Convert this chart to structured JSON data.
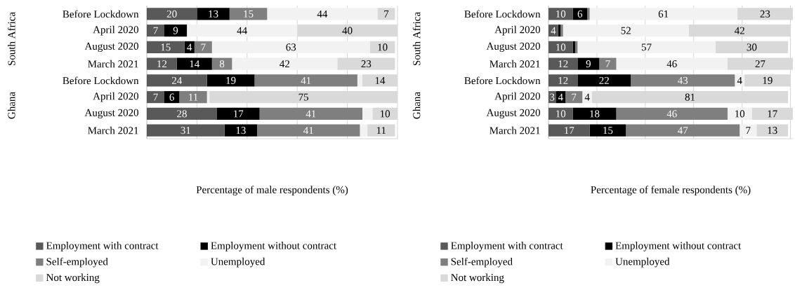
{
  "chart_data": [
    {
      "type": "bar",
      "orientation": "horizontal",
      "stacked": true,
      "categories": [
        "Before Lockdown",
        "April 2020",
        "August 2020",
        "March 2021",
        "Before Lockdown",
        "April 2020",
        "August 2020",
        "March 2021"
      ],
      "series": [
        {
          "name": "Employment with contract",
          "color": "#595959",
          "values": [
            20,
            7,
            15,
            12,
            24,
            7,
            28,
            31
          ],
          "value_labels": [
            "20",
            "7",
            "15",
            "12",
            "24",
            "7",
            "28",
            "31"
          ]
        },
        {
          "name": "Employment without contract",
          "color": "#000000",
          "values": [
            13,
            9,
            4,
            14,
            19,
            6,
            17,
            13
          ],
          "value_labels": [
            "13",
            "9",
            "4",
            "14",
            "19",
            "6",
            "17",
            "13"
          ]
        },
        {
          "name": "Self-employed",
          "color": "#7f7f7f",
          "values": [
            15,
            0,
            7,
            8,
            41,
            11,
            41,
            41
          ],
          "value_labels": [
            "15",
            null,
            "7",
            "8",
            "41",
            "11",
            "41",
            "41"
          ]
        },
        {
          "name": "Unemployed",
          "color": "#f2f2f2",
          "values": [
            44,
            44,
            63,
            42,
            2,
            1,
            4,
            3
          ],
          "value_labels": [
            "44",
            "44",
            "63",
            "42",
            null,
            null,
            null,
            null
          ]
        },
        {
          "name": "Not working",
          "color": "#d9d9d9",
          "values": [
            7,
            40,
            10,
            23,
            14,
            75,
            10,
            11
          ],
          "value_labels": [
            "7",
            "40",
            "10",
            "23",
            "14",
            "75",
            "10",
            "11"
          ]
        }
      ],
      "xlabel": "Percentage of male respondents (%)",
      "annotations": [
        "South Africa",
        "Ghana"
      ],
      "grid": "x",
      "legend": "bottom",
      "tick_labels": "y"
    },
    {
      "type": "bar",
      "orientation": "horizontal",
      "stacked": true,
      "categories": [
        "Before Lockdown",
        "April 2020",
        "August 2020",
        "March 2021",
        "Before Lockdown",
        "April 2020",
        "August 2020",
        "March 2021"
      ],
      "series": [
        {
          "name": "Employment with contract",
          "color": "#595959",
          "values": [
            10,
            4,
            10,
            12,
            12,
            3,
            10,
            17
          ],
          "value_labels": [
            "10",
            "4",
            "10",
            "12",
            "12",
            "3",
            "10",
            "17"
          ]
        },
        {
          "name": "Employment without contract",
          "color": "#000000",
          "values": [
            6,
            1,
            1,
            9,
            22,
            4,
            18,
            15
          ],
          "value_labels": [
            "6",
            null,
            null,
            "9",
            "22",
            "4",
            "18",
            "15"
          ]
        },
        {
          "name": "Self-employed",
          "color": "#7f7f7f",
          "values": [
            1,
            1,
            1,
            7,
            43,
            7,
            46,
            47
          ],
          "value_labels": [
            null,
            null,
            null,
            "7",
            "43",
            "7",
            "46",
            "47"
          ]
        },
        {
          "name": "Unemployed",
          "color": "#f2f2f2",
          "values": [
            61,
            52,
            57,
            46,
            4,
            4,
            10,
            7
          ],
          "value_labels": [
            "61",
            "52",
            "57",
            "46",
            "4",
            "4",
            "10",
            "7"
          ]
        },
        {
          "name": "Not working",
          "color": "#d9d9d9",
          "values": [
            23,
            42,
            30,
            27,
            19,
            81,
            17,
            13
          ],
          "value_labels": [
            "23",
            "42",
            "30",
            "27",
            "19",
            "81",
            "17",
            "13"
          ]
        }
      ],
      "xlabel": "Percentage of female respondents (%)",
      "annotations": [
        "South Africa",
        "Ghana"
      ],
      "grid": "x",
      "legend": "bottom",
      "tick_labels": "y"
    }
  ]
}
